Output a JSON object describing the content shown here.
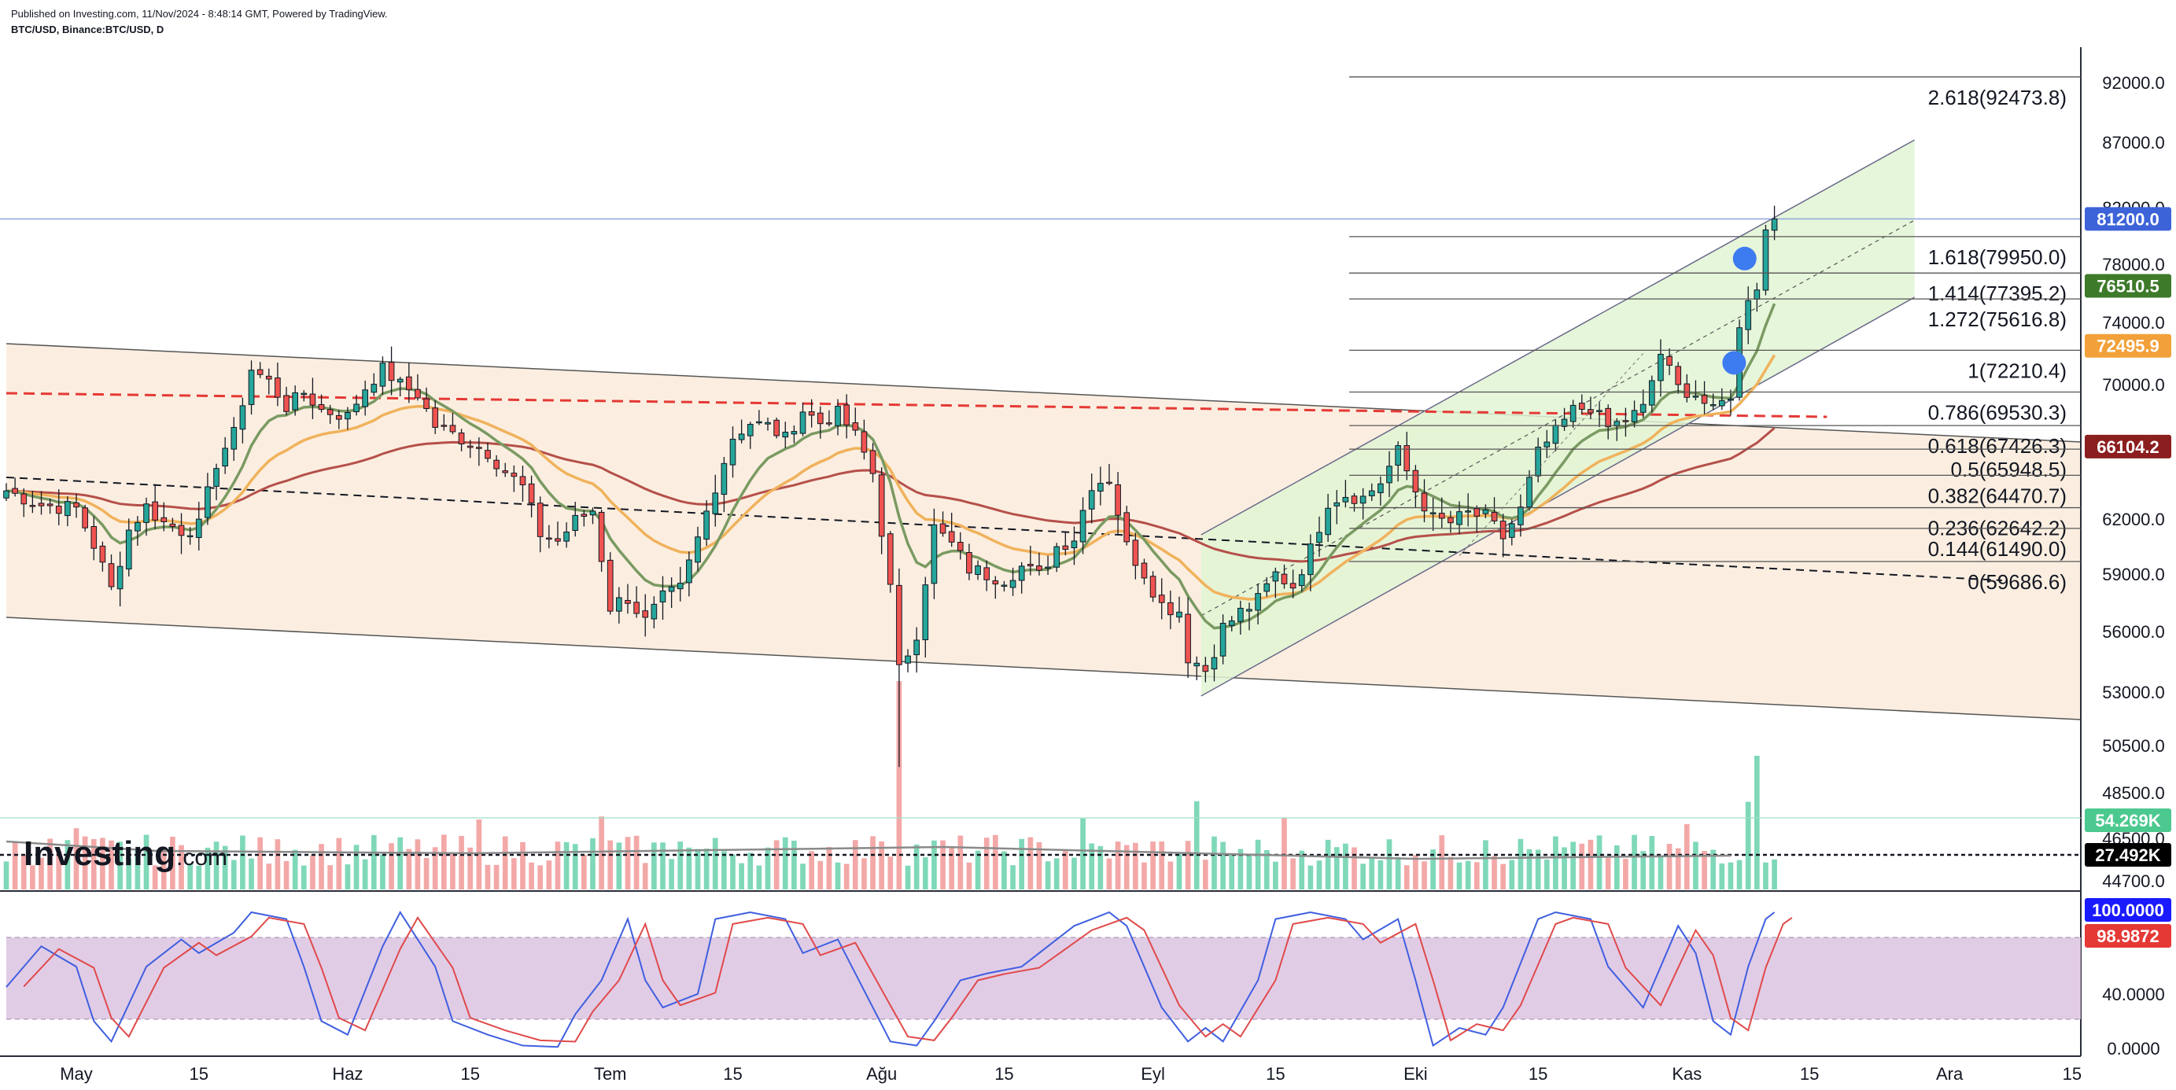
{
  "header": {
    "published": "Published on Investing.com, 11/Nov/2024 - 8:48:14 GMT, Powered by TradingView.",
    "symbol": "BTC/USD, Binance:BTC/USD, D"
  },
  "logo": {
    "brand": "Investing",
    "suffix": ".com"
  },
  "colors": {
    "up": "#26a69a",
    "down": "#ef5350",
    "volume_up": "#7fd8b8",
    "volume_down": "#f3a8a8",
    "ema_fast": "#7a9a62",
    "ema_mid": "#f0b25c",
    "ema_slow": "#b5504a",
    "stoch_k": "#3f5fe0",
    "stoch_d": "#e04a4a",
    "stoch_band": "#d9bfe0",
    "descending_channel": "#fbeee0",
    "ascending_channel": "#e2f5d3"
  },
  "chart_data": {
    "type": "candlestick",
    "instrument": "BTC/USD",
    "timeframe": "D",
    "x_axis": {
      "labels": [
        "May",
        "15",
        "Haz",
        "15",
        "Tem",
        "15",
        "Ağu",
        "15",
        "Eyl",
        "15",
        "Eki",
        "15",
        "Kas",
        "15",
        "Ara",
        "15"
      ],
      "label_days": [
        0,
        14,
        31,
        45,
        61,
        75,
        92,
        106,
        123,
        137,
        153,
        167,
        184,
        198,
        214,
        228
      ],
      "range_days": [
        -8,
        229
      ]
    },
    "price_axis": {
      "ticks": [
        92000.0,
        87000.0,
        82000.0,
        78000.0,
        74000.0,
        70000.0,
        66000.0,
        62000.0,
        59000.0,
        56000.0,
        53000.0,
        50500.0,
        48500.0,
        46500.0,
        44700.0
      ],
      "tick_labels": [
        "92000.0",
        "87000.0",
        "82000.0",
        "78000.0",
        "74000.0",
        "70000.0",
        "66000.0",
        "62000.0",
        "59000.0",
        "56000.0",
        "53000.0",
        "50500.0",
        "48500.0",
        "46500.0",
        "44700.0"
      ]
    },
    "price_badges": [
      {
        "value": 81200.0,
        "label": "81200.0",
        "color": "#3d63d9"
      },
      {
        "value": 76510.5,
        "label": "76510.5",
        "color": "#3d7a2a"
      },
      {
        "value": 72495.9,
        "label": "72495.9",
        "color": "#f2a13a"
      },
      {
        "value": 66104.2,
        "label": "66104.2",
        "color": "#8b1e1e"
      }
    ],
    "volume_badges": [
      {
        "label": "54.269K",
        "color": "#4cc98f",
        "text_color": "#ffffff"
      },
      {
        "label": "27.492K",
        "color": "#000000",
        "text_color": "#ffffff"
      }
    ],
    "fibonacci": [
      {
        "ratio": "2.618",
        "value": 92473.8,
        "label": "2.618(92473.8)"
      },
      {
        "ratio": "1.618",
        "value": 79950.0,
        "label": "1.618(79950.0)"
      },
      {
        "ratio": "1.414",
        "value": 77395.2,
        "label": "1.414(77395.2)"
      },
      {
        "ratio": "1.272",
        "value": 75616.8,
        "label": "1.272(75616.8)"
      },
      {
        "ratio": "1",
        "value": 72210.4,
        "label": "1(72210.4)"
      },
      {
        "ratio": "0.786",
        "value": 69530.3,
        "label": "0.786(69530.3)"
      },
      {
        "ratio": "0.618",
        "value": 67426.3,
        "label": "0.618(67426.3)"
      },
      {
        "ratio": "0.5",
        "value": 65948.5,
        "label": "0.5(65948.5)"
      },
      {
        "ratio": "0.382",
        "value": 64470.7,
        "label": "0.382(64470.7)"
      },
      {
        "ratio": "0.236",
        "value": 62642.2,
        "label": "0.236(62642.2)"
      },
      {
        "ratio": "0.144",
        "value": 61490.0,
        "label": "0.144(61490.0)"
      },
      {
        "ratio": "0",
        "value": 59686.6,
        "label": "0(59686.6)"
      }
    ],
    "closes": [
      {
        "day": -8,
        "c": 63600
      },
      {
        "day": -4,
        "c": 62800
      },
      {
        "day": 0,
        "c": 62600
      },
      {
        "day": 2,
        "c": 60600
      },
      {
        "day": 4,
        "c": 58200
      },
      {
        "day": 6,
        "c": 61400
      },
      {
        "day": 8,
        "c": 62700
      },
      {
        "day": 10,
        "c": 61800
      },
      {
        "day": 12,
        "c": 61400
      },
      {
        "day": 14,
        "c": 61600
      },
      {
        "day": 16,
        "c": 65200
      },
      {
        "day": 18,
        "c": 66900
      },
      {
        "day": 20,
        "c": 71000
      },
      {
        "day": 22,
        "c": 70200
      },
      {
        "day": 24,
        "c": 68600
      },
      {
        "day": 26,
        "c": 69500
      },
      {
        "day": 28,
        "c": 68400
      },
      {
        "day": 31,
        "c": 68000
      },
      {
        "day": 33,
        "c": 69800
      },
      {
        "day": 35,
        "c": 71000
      },
      {
        "day": 37,
        "c": 70000
      },
      {
        "day": 39,
        "c": 69400
      },
      {
        "day": 41,
        "c": 67400
      },
      {
        "day": 43,
        "c": 66900
      },
      {
        "day": 45,
        "c": 66300
      },
      {
        "day": 47,
        "c": 65800
      },
      {
        "day": 49,
        "c": 64700
      },
      {
        "day": 51,
        "c": 63800
      },
      {
        "day": 53,
        "c": 61200
      },
      {
        "day": 55,
        "c": 60800
      },
      {
        "day": 57,
        "c": 61900
      },
      {
        "day": 59,
        "c": 62500
      },
      {
        "day": 61,
        "c": 57300
      },
      {
        "day": 63,
        "c": 57800
      },
      {
        "day": 65,
        "c": 56500
      },
      {
        "day": 67,
        "c": 57700
      },
      {
        "day": 69,
        "c": 58200
      },
      {
        "day": 71,
        "c": 60900
      },
      {
        "day": 73,
        "c": 63900
      },
      {
        "day": 75,
        "c": 66700
      },
      {
        "day": 77,
        "c": 67600
      },
      {
        "day": 79,
        "c": 67400
      },
      {
        "day": 81,
        "c": 66600
      },
      {
        "day": 83,
        "c": 68400
      },
      {
        "day": 85,
        "c": 67600
      },
      {
        "day": 87,
        "c": 68200
      },
      {
        "day": 89,
        "c": 66800
      },
      {
        "day": 91,
        "c": 64600
      },
      {
        "day": 93,
        "c": 58200
      },
      {
        "day": 94,
        "c": 54000
      },
      {
        "day": 96,
        "c": 56000
      },
      {
        "day": 98,
        "c": 61500
      },
      {
        "day": 100,
        "c": 60600
      },
      {
        "day": 102,
        "c": 59300
      },
      {
        "day": 104,
        "c": 59000
      },
      {
        "day": 106,
        "c": 58800
      },
      {
        "day": 108,
        "c": 59400
      },
      {
        "day": 110,
        "c": 58900
      },
      {
        "day": 112,
        "c": 60500
      },
      {
        "day": 114,
        "c": 61000
      },
      {
        "day": 116,
        "c": 64000
      },
      {
        "day": 118,
        "c": 64300
      },
      {
        "day": 120,
        "c": 60500
      },
      {
        "day": 122,
        "c": 59100
      },
      {
        "day": 124,
        "c": 57400
      },
      {
        "day": 126,
        "c": 57100
      },
      {
        "day": 127,
        "c": 54800
      },
      {
        "day": 129,
        "c": 54100
      },
      {
        "day": 131,
        "c": 56200
      },
      {
        "day": 133,
        "c": 57000
      },
      {
        "day": 135,
        "c": 57600
      },
      {
        "day": 137,
        "c": 59000
      },
      {
        "day": 139,
        "c": 58400
      },
      {
        "day": 141,
        "c": 60300
      },
      {
        "day": 143,
        "c": 63000
      },
      {
        "day": 145,
        "c": 63400
      },
      {
        "day": 147,
        "c": 63200
      },
      {
        "day": 149,
        "c": 64100
      },
      {
        "day": 151,
        "c": 65800
      },
      {
        "day": 153,
        "c": 63600
      },
      {
        "day": 155,
        "c": 62000
      },
      {
        "day": 157,
        "c": 61800
      },
      {
        "day": 159,
        "c": 62300
      },
      {
        "day": 161,
        "c": 62100
      },
      {
        "day": 163,
        "c": 61000
      },
      {
        "day": 165,
        "c": 62500
      },
      {
        "day": 167,
        "c": 65700
      },
      {
        "day": 169,
        "c": 67000
      },
      {
        "day": 171,
        "c": 68400
      },
      {
        "day": 173,
        "c": 68600
      },
      {
        "day": 175,
        "c": 67300
      },
      {
        "day": 177,
        "c": 67800
      },
      {
        "day": 179,
        "c": 68500
      },
      {
        "day": 181,
        "c": 72000
      },
      {
        "day": 183,
        "c": 69800
      },
      {
        "day": 185,
        "c": 69400
      },
      {
        "day": 187,
        "c": 68300
      },
      {
        "day": 189,
        "c": 69400
      },
      {
        "day": 190,
        "c": 73500
      },
      {
        "day": 191,
        "c": 75800
      },
      {
        "day": 192,
        "c": 76500
      },
      {
        "day": 193,
        "c": 80400
      },
      {
        "day": 194,
        "c": 81200
      }
    ],
    "indicators": [
      {
        "name": "EMA fast",
        "color": "#7a9a62",
        "last": 76510.5
      },
      {
        "name": "EMA mid",
        "color": "#f0b25c",
        "last": 72495.9
      },
      {
        "name": "EMA slow",
        "color": "#b5504a",
        "last": 66104.2
      }
    ],
    "volume": {
      "badge_levels": [
        "54.269K",
        "27.492K"
      ]
    },
    "stochastic": {
      "ticks": [
        40.0,
        0.0
      ],
      "tick_labels": [
        "40.0000",
        "0.0000"
      ],
      "badges": [
        {
          "label": "100.0000",
          "color": "#1a1aff"
        },
        {
          "label": "98.9872",
          "color": "#e53935"
        }
      ],
      "k_points": [
        {
          "day": -8,
          "v": 45
        },
        {
          "day": -4,
          "v": 75
        },
        {
          "day": 0,
          "v": 60
        },
        {
          "day": 2,
          "v": 20
        },
        {
          "day": 4,
          "v": 5
        },
        {
          "day": 8,
          "v": 60
        },
        {
          "day": 12,
          "v": 80
        },
        {
          "day": 14,
          "v": 70
        },
        {
          "day": 18,
          "v": 85
        },
        {
          "day": 20,
          "v": 100
        },
        {
          "day": 24,
          "v": 95
        },
        {
          "day": 26,
          "v": 60
        },
        {
          "day": 28,
          "v": 20
        },
        {
          "day": 31,
          "v": 10
        },
        {
          "day": 35,
          "v": 75
        },
        {
          "day": 37,
          "v": 100
        },
        {
          "day": 41,
          "v": 60
        },
        {
          "day": 43,
          "v": 20
        },
        {
          "day": 47,
          "v": 10
        },
        {
          "day": 51,
          "v": 2
        },
        {
          "day": 55,
          "v": 1
        },
        {
          "day": 57,
          "v": 25
        },
        {
          "day": 60,
          "v": 50
        },
        {
          "day": 63,
          "v": 95
        },
        {
          "day": 65,
          "v": 50
        },
        {
          "day": 67,
          "v": 30
        },
        {
          "day": 71,
          "v": 40
        },
        {
          "day": 73,
          "v": 95
        },
        {
          "day": 77,
          "v": 100
        },
        {
          "day": 81,
          "v": 95
        },
        {
          "day": 83,
          "v": 70
        },
        {
          "day": 87,
          "v": 80
        },
        {
          "day": 89,
          "v": 55
        },
        {
          "day": 91,
          "v": 30
        },
        {
          "day": 93,
          "v": 5
        },
        {
          "day": 96,
          "v": 2
        },
        {
          "day": 98,
          "v": 20
        },
        {
          "day": 101,
          "v": 50
        },
        {
          "day": 104,
          "v": 55
        },
        {
          "day": 108,
          "v": 60
        },
        {
          "day": 112,
          "v": 80
        },
        {
          "day": 114,
          "v": 90
        },
        {
          "day": 118,
          "v": 100
        },
        {
          "day": 120,
          "v": 90
        },
        {
          "day": 124,
          "v": 30
        },
        {
          "day": 127,
          "v": 5
        },
        {
          "day": 129,
          "v": 15
        },
        {
          "day": 131,
          "v": 5
        },
        {
          "day": 135,
          "v": 50
        },
        {
          "day": 137,
          "v": 95
        },
        {
          "day": 141,
          "v": 100
        },
        {
          "day": 145,
          "v": 95
        },
        {
          "day": 147,
          "v": 80
        },
        {
          "day": 151,
          "v": 95
        },
        {
          "day": 153,
          "v": 50
        },
        {
          "day": 155,
          "v": 2
        },
        {
          "day": 158,
          "v": 15
        },
        {
          "day": 161,
          "v": 10
        },
        {
          "day": 163,
          "v": 30
        },
        {
          "day": 167,
          "v": 95
        },
        {
          "day": 169,
          "v": 100
        },
        {
          "day": 173,
          "v": 95
        },
        {
          "day": 175,
          "v": 60
        },
        {
          "day": 179,
          "v": 30
        },
        {
          "day": 181,
          "v": 60
        },
        {
          "day": 183,
          "v": 90
        },
        {
          "day": 185,
          "v": 70
        },
        {
          "day": 187,
          "v": 20
        },
        {
          "day": 189,
          "v": 10
        },
        {
          "day": 191,
          "v": 60
        },
        {
          "day": 193,
          "v": 95
        },
        {
          "day": 194,
          "v": 100
        }
      ]
    }
  }
}
